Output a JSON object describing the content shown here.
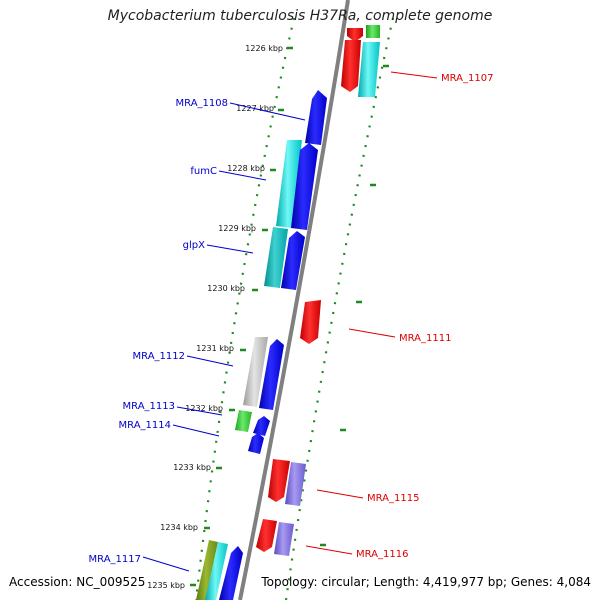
{
  "header": {
    "title": "Mycobacterium tuberculosis H37Ra, complete genome"
  },
  "footer": {
    "accession": "Accession: NC_009525",
    "summary": "Topology: circular; Length: 4,419,977 bp; Genes: 4,084"
  },
  "colors": {
    "backbone": "#808080",
    "tick": "#1f8a1f",
    "left_label": "#0000cc",
    "right_label": "#dd0000"
  },
  "kbp_ticks": [
    "1226 kbp",
    "1227 kbp",
    "1228 kbp",
    "1229 kbp",
    "1230 kbp",
    "1231 kbp",
    "1232 kbp",
    "1233 kbp",
    "1234 kbp",
    "1235 kbp"
  ],
  "gene_labels_left": [
    "MRA_1108",
    "fumC",
    "glpX",
    "MRA_1112",
    "MRA_1113",
    "MRA_1114",
    "MRA_1117"
  ],
  "gene_labels_right": [
    "MRA_1107",
    "MRA_1111",
    "MRA_1115",
    "MRA_1116"
  ]
}
